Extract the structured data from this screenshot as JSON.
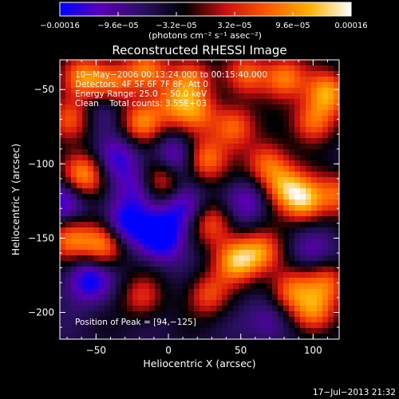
{
  "chart_data": {
    "type": "heatmap",
    "title": "Reconstructed RHESSI Image",
    "xlabel": "Heliocentric X (arcsec)",
    "ylabel": "Heliocentric Y (arcsec)",
    "xlim": [
      -75,
      118
    ],
    "ylim": [
      -218,
      -30
    ],
    "x_ticks": [
      -50,
      0,
      50,
      100
    ],
    "x_tick_labels": [
      "−50",
      "0",
      "50",
      "100"
    ],
    "y_ticks": [
      -50,
      -100,
      -150,
      -200
    ],
    "y_tick_labels": [
      "−50",
      "−100",
      "−150",
      "−200"
    ],
    "colorbar": {
      "range": [
        -0.00016,
        0.00016
      ],
      "ticks": [
        -0.00016,
        -9.6e-05,
        -3.2e-05,
        3.2e-05,
        9.6e-05,
        0.00016
      ],
      "tick_labels": [
        "−0.00016",
        "−9.6e−05",
        "−3.2e−05",
        "3.2e−05",
        "9.6e−05",
        "0.00016"
      ],
      "unit_label": "(photons cm⁻² s⁻¹ asec⁻²)",
      "colormap": [
        "#0000ff",
        "#5a00b4",
        "#2a1060",
        "#000000",
        "#cc1010",
        "#ff5a00",
        "#ffb000",
        "#ffffff"
      ]
    },
    "annotations": [
      "10−May−2006 00:13:24.000 to 00:15:40.000",
      "Detectors: 4F 5F 6F 7F 8F, Att 0",
      "Energy Range: 25.0 − 50.0 keV",
      "Clean    Total counts: 3.55E+03"
    ],
    "peak_label": "Position of Peak = [94,−125]",
    "peak": [
      94,
      -125
    ],
    "timestamp": "17−Jul−2013 21:32",
    "hot_spots": [
      [
        -58,
        -42,
        0.85
      ],
      [
        -38,
        -45,
        0.75
      ],
      [
        -15,
        -37,
        0.7
      ],
      [
        15,
        -42,
        0.8
      ],
      [
        55,
        -40,
        0.7
      ],
      [
        80,
        -42,
        0.85
      ],
      [
        110,
        -52,
        0.95
      ],
      [
        -68,
        -70,
        0.8
      ],
      [
        -18,
        -72,
        0.95
      ],
      [
        3,
        -60,
        0.6
      ],
      [
        20,
        -65,
        0.65
      ],
      [
        45,
        -75,
        0.8
      ],
      [
        100,
        -72,
        0.8
      ],
      [
        -58,
        -108,
        0.95
      ],
      [
        -5,
        -112,
        0.75
      ],
      [
        25,
        -97,
        0.85
      ],
      [
        68,
        -100,
        0.75
      ],
      [
        80,
        -115,
        0.8
      ],
      [
        94,
        -125,
        1.0
      ],
      [
        118,
        -120,
        0.7
      ],
      [
        -68,
        -150,
        0.85
      ],
      [
        -45,
        -155,
        0.9
      ],
      [
        30,
        -140,
        0.7
      ],
      [
        47,
        -165,
        0.95
      ],
      [
        65,
        -160,
        0.8
      ],
      [
        -18,
        -190,
        0.55
      ],
      [
        28,
        -188,
        0.65
      ],
      [
        85,
        -185,
        0.75
      ],
      [
        110,
        -180,
        0.7
      ],
      [
        100,
        -200,
        0.85
      ]
    ],
    "cold_spots": [
      [
        -72,
        -125,
        0.6
      ],
      [
        -55,
        -178,
        0.7
      ],
      [
        -30,
        -140,
        0.75
      ],
      [
        -5,
        -150,
        0.8
      ],
      [
        10,
        -130,
        0.65
      ],
      [
        -20,
        -115,
        0.5
      ],
      [
        5,
        -95,
        0.55
      ],
      [
        -35,
        -95,
        0.5
      ],
      [
        55,
        -125,
        0.45
      ],
      [
        -45,
        -65,
        0.4
      ],
      [
        100,
        -160,
        0.4
      ],
      [
        70,
        -205,
        0.4
      ]
    ]
  }
}
